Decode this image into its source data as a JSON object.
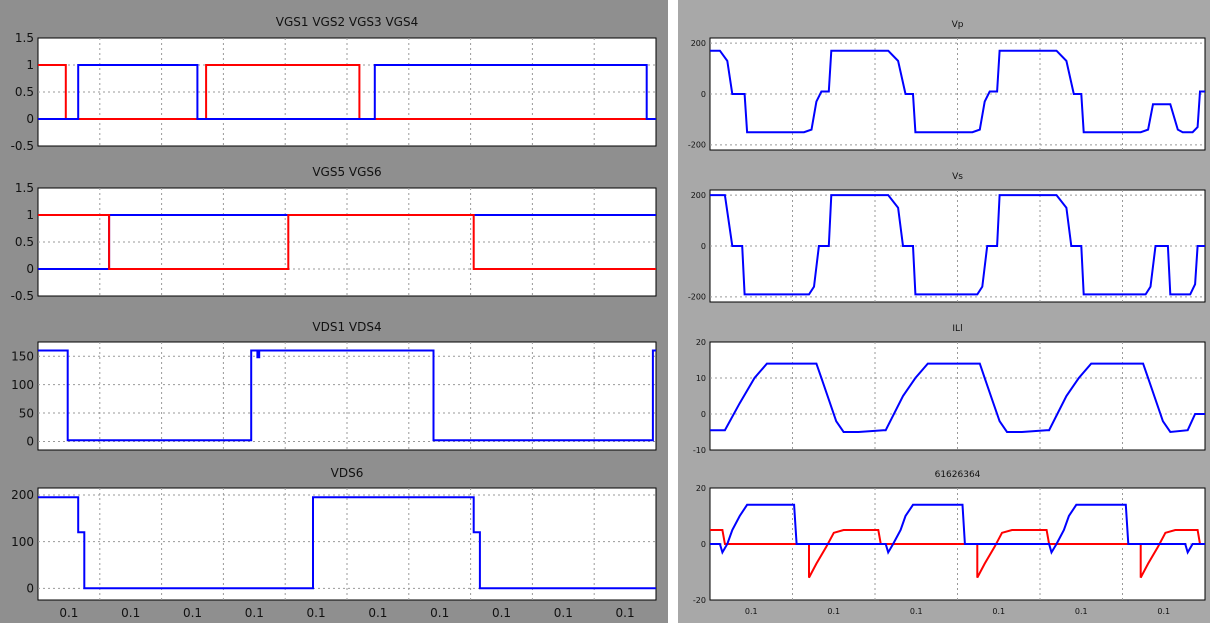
{
  "colors": {
    "series1": "#0000ff",
    "series2": "#ff0000",
    "panel_bg": "#8f8f8f",
    "plot_bg": "#ffffff"
  },
  "chart_data": [
    {
      "type": "line",
      "title": "VGS1 VGS2 VGS3 VGS4",
      "ylim": [
        -0.5,
        1.5
      ],
      "yticks": [
        "1.5",
        "1",
        "0.5",
        "0",
        "-0.5"
      ],
      "grid": true,
      "series": [
        {
          "color": "#ff0000",
          "points": [
            [
              0.0,
              1
            ],
            [
              0.045,
              1
            ],
            [
              0.045,
              0
            ],
            [
              0.272,
              0
            ],
            [
              0.272,
              1
            ],
            [
              0.52,
              1
            ],
            [
              0.52,
              0
            ],
            [
              1.0,
              0
            ]
          ]
        },
        {
          "color": "#0000ff",
          "points": [
            [
              0.0,
              0
            ],
            [
              0.065,
              0
            ],
            [
              0.065,
              1
            ],
            [
              0.258,
              1
            ],
            [
              0.258,
              0
            ],
            [
              0.545,
              0
            ],
            [
              0.545,
              1
            ],
            [
              0.985,
              1
            ],
            [
              0.985,
              0
            ],
            [
              1.0,
              0
            ]
          ]
        }
      ]
    },
    {
      "type": "line",
      "title": "VGS5  VGS6",
      "ylim": [
        -0.5,
        1.5
      ],
      "yticks": [
        "1.5",
        "1",
        "0.5",
        "0",
        "-0.5"
      ],
      "grid": true,
      "series": [
        {
          "color": "#0000ff",
          "points": [
            [
              0.0,
              0
            ],
            [
              0.115,
              0
            ],
            [
              0.115,
              1
            ],
            [
              1.0,
              1
            ]
          ]
        },
        {
          "color": "#ff0000",
          "points": [
            [
              0.0,
              1
            ],
            [
              0.115,
              1
            ],
            [
              0.115,
              0
            ],
            [
              0.405,
              0
            ],
            [
              0.405,
              1
            ],
            [
              0.705,
              1
            ],
            [
              0.705,
              0
            ],
            [
              1.0,
              0
            ]
          ]
        }
      ]
    },
    {
      "type": "line",
      "title": "VDS1  VDS4",
      "ylim": [
        -15,
        175
      ],
      "yticks": [
        "150",
        "100",
        "50",
        "0"
      ],
      "grid": true,
      "series": [
        {
          "color": "#0000ff",
          "points": [
            [
              0.0,
              160
            ],
            [
              0.048,
              160
            ],
            [
              0.048,
              2
            ],
            [
              0.345,
              2
            ],
            [
              0.345,
              160
            ],
            [
              0.355,
              160
            ],
            [
              0.355,
              148
            ],
            [
              0.358,
              148
            ],
            [
              0.358,
              160
            ],
            [
              0.64,
              160
            ],
            [
              0.64,
              2
            ],
            [
              0.995,
              2
            ],
            [
              0.995,
              160
            ],
            [
              1.0,
              160
            ]
          ]
        }
      ]
    },
    {
      "type": "line",
      "title": "VDS6",
      "ylim": [
        -25,
        215
      ],
      "yticks": [
        "200",
        "100",
        "0"
      ],
      "grid": true,
      "xticks": [
        "0.1",
        "0.1",
        "0.1",
        "0.1",
        "0.1",
        "0.1",
        "0.1",
        "0.1",
        "0.1",
        "0.1"
      ],
      "series": [
        {
          "color": "#0000ff",
          "points": [
            [
              0.0,
              195
            ],
            [
              0.065,
              195
            ],
            [
              0.065,
              120
            ],
            [
              0.075,
              120
            ],
            [
              0.075,
              0
            ],
            [
              0.445,
              0
            ],
            [
              0.445,
              195
            ],
            [
              0.705,
              195
            ],
            [
              0.705,
              120
            ],
            [
              0.715,
              120
            ],
            [
              0.715,
              0
            ],
            [
              1.0,
              0
            ]
          ]
        }
      ]
    },
    {
      "type": "line",
      "title": "Vp",
      "ylim": [
        -220,
        220
      ],
      "yticks": [
        "200",
        "0",
        "-200"
      ],
      "grid": true,
      "series": [
        {
          "color": "#0000ff",
          "points": [
            [
              0.0,
              170
            ],
            [
              0.02,
              170
            ],
            [
              0.035,
              130
            ],
            [
              0.045,
              0
            ],
            [
              0.07,
              0
            ],
            [
              0.075,
              -150
            ],
            [
              0.19,
              -150
            ],
            [
              0.205,
              -140
            ],
            [
              0.215,
              -30
            ],
            [
              0.225,
              10
            ],
            [
              0.24,
              10
            ],
            [
              0.245,
              170
            ],
            [
              0.36,
              170
            ],
            [
              0.38,
              130
            ],
            [
              0.395,
              0
            ],
            [
              0.41,
              0
            ],
            [
              0.415,
              -150
            ],
            [
              0.53,
              -150
            ],
            [
              0.545,
              -140
            ],
            [
              0.555,
              -30
            ],
            [
              0.565,
              10
            ],
            [
              0.58,
              10
            ],
            [
              0.585,
              170
            ],
            [
              0.7,
              170
            ],
            [
              0.72,
              130
            ],
            [
              0.735,
              0
            ],
            [
              0.75,
              0
            ],
            [
              0.755,
              -150
            ],
            [
              0.87,
              -150
            ],
            [
              0.885,
              -140
            ],
            [
              0.895,
              -40
            ],
            [
              0.93,
              -40
            ],
            [
              0.945,
              -140
            ],
            [
              0.955,
              -150
            ],
            [
              0.975,
              -150
            ],
            [
              0.985,
              -130
            ],
            [
              0.99,
              10
            ],
            [
              1.0,
              10
            ]
          ]
        }
      ]
    },
    {
      "type": "line",
      "title": "Vs",
      "ylim": [
        -220,
        220
      ],
      "yticks": [
        "200",
        "0",
        "-200"
      ],
      "grid": true,
      "series": [
        {
          "color": "#0000ff",
          "points": [
            [
              0.0,
              200
            ],
            [
              0.03,
              200
            ],
            [
              0.045,
              0
            ],
            [
              0.065,
              0
            ],
            [
              0.07,
              -190
            ],
            [
              0.2,
              -190
            ],
            [
              0.21,
              -160
            ],
            [
              0.22,
              0
            ],
            [
              0.24,
              0
            ],
            [
              0.245,
              200
            ],
            [
              0.36,
              200
            ],
            [
              0.38,
              150
            ],
            [
              0.39,
              0
            ],
            [
              0.41,
              0
            ],
            [
              0.415,
              -190
            ],
            [
              0.54,
              -190
            ],
            [
              0.55,
              -160
            ],
            [
              0.56,
              0
            ],
            [
              0.58,
              0
            ],
            [
              0.585,
              200
            ],
            [
              0.7,
              200
            ],
            [
              0.72,
              150
            ],
            [
              0.73,
              0
            ],
            [
              0.75,
              0
            ],
            [
              0.755,
              -190
            ],
            [
              0.88,
              -190
            ],
            [
              0.89,
              -160
            ],
            [
              0.9,
              0
            ],
            [
              0.92,
              0
            ],
            [
              0.925,
              0
            ],
            [
              0.93,
              -190
            ],
            [
              0.97,
              -190
            ],
            [
              0.98,
              -150
            ],
            [
              0.985,
              0
            ],
            [
              1.0,
              0
            ]
          ]
        }
      ]
    },
    {
      "type": "line",
      "title": "ILl",
      "ylim": [
        -10,
        20
      ],
      "yticks": [
        "20",
        "10",
        "0",
        "-10"
      ],
      "grid": true,
      "series": [
        {
          "color": "#0000ff",
          "points": [
            [
              0.0,
              -4.5
            ],
            [
              0.03,
              -4.5
            ],
            [
              0.06,
              3
            ],
            [
              0.09,
              10
            ],
            [
              0.115,
              14
            ],
            [
              0.215,
              14
            ],
            [
              0.225,
              10
            ],
            [
              0.24,
              4
            ],
            [
              0.255,
              -2
            ],
            [
              0.27,
              -5
            ],
            [
              0.3,
              -5
            ],
            [
              0.35,
              -4.5
            ],
            [
              0.355,
              -4.5
            ],
            [
              0.39,
              5
            ],
            [
              0.415,
              10
            ],
            [
              0.44,
              14
            ],
            [
              0.545,
              14
            ],
            [
              0.555,
              10
            ],
            [
              0.57,
              4
            ],
            [
              0.585,
              -2
            ],
            [
              0.6,
              -5
            ],
            [
              0.63,
              -5
            ],
            [
              0.68,
              -4.5
            ],
            [
              0.685,
              -4.5
            ],
            [
              0.72,
              5
            ],
            [
              0.745,
              10
            ],
            [
              0.77,
              14
            ],
            [
              0.875,
              14
            ],
            [
              0.885,
              10
            ],
            [
              0.9,
              4
            ],
            [
              0.915,
              -2
            ],
            [
              0.93,
              -5
            ],
            [
              0.965,
              -4.5
            ],
            [
              0.98,
              0
            ],
            [
              1.0,
              0
            ]
          ]
        }
      ]
    },
    {
      "type": "line",
      "title": "61626364",
      "ylim": [
        -20,
        20
      ],
      "yticks": [
        "20",
        "0",
        "-20"
      ],
      "grid": true,
      "xticks": [
        "0.1",
        "0.1",
        "0.1",
        "0.1",
        "0.1",
        "0.1"
      ],
      "series": [
        {
          "color": "#ff0000",
          "points": [
            [
              0.0,
              5
            ],
            [
              0.025,
              5
            ],
            [
              0.03,
              0
            ],
            [
              0.2,
              0
            ],
            [
              0.2,
              -12
            ],
            [
              0.215,
              -7
            ],
            [
              0.235,
              -1
            ],
            [
              0.25,
              4
            ],
            [
              0.27,
              5
            ],
            [
              0.34,
              5
            ],
            [
              0.345,
              0
            ],
            [
              0.54,
              0
            ],
            [
              0.54,
              -12
            ],
            [
              0.555,
              -7
            ],
            [
              0.575,
              -1
            ],
            [
              0.59,
              4
            ],
            [
              0.61,
              5
            ],
            [
              0.68,
              5
            ],
            [
              0.685,
              0
            ],
            [
              0.87,
              0
            ],
            [
              0.87,
              -12
            ],
            [
              0.885,
              -7
            ],
            [
              0.905,
              -1
            ],
            [
              0.92,
              4
            ],
            [
              0.94,
              5
            ],
            [
              0.985,
              5
            ],
            [
              0.99,
              0
            ],
            [
              1.0,
              0
            ]
          ]
        },
        {
          "color": "#0000ff",
          "points": [
            [
              0.0,
              0
            ],
            [
              0.02,
              0
            ],
            [
              0.025,
              -3
            ],
            [
              0.035,
              0
            ],
            [
              0.045,
              5
            ],
            [
              0.06,
              10
            ],
            [
              0.075,
              14
            ],
            [
              0.17,
              14
            ],
            [
              0.175,
              0
            ],
            [
              0.355,
              0
            ],
            [
              0.36,
              -3
            ],
            [
              0.37,
              0
            ],
            [
              0.385,
              5
            ],
            [
              0.395,
              10
            ],
            [
              0.41,
              14
            ],
            [
              0.51,
              14
            ],
            [
              0.515,
              0
            ],
            [
              0.685,
              0
            ],
            [
              0.69,
              -3
            ],
            [
              0.7,
              0
            ],
            [
              0.715,
              5
            ],
            [
              0.725,
              10
            ],
            [
              0.74,
              14
            ],
            [
              0.84,
              14
            ],
            [
              0.845,
              0
            ],
            [
              0.96,
              0
            ],
            [
              0.965,
              -3
            ],
            [
              0.975,
              0
            ],
            [
              1.0,
              0
            ]
          ]
        }
      ]
    }
  ]
}
